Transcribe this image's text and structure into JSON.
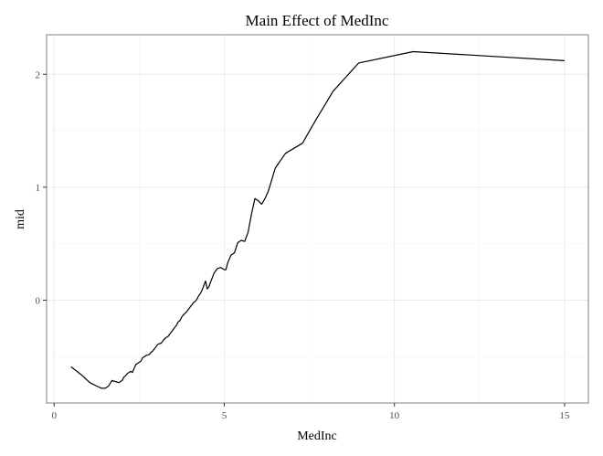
{
  "chart_data": {
    "type": "line",
    "title": "Main Effect of MedInc",
    "xlabel": "MedInc",
    "ylabel": "mid",
    "xlim": [
      -0.22,
      15.7
    ],
    "ylim": [
      -0.91,
      2.35
    ],
    "xticks": [
      0,
      5,
      10,
      15
    ],
    "yticks": [
      0,
      1,
      2
    ],
    "grid": true,
    "series": [
      {
        "x": [
          0.5,
          0.8,
          1.05,
          1.25,
          1.4,
          1.5,
          1.6,
          1.7,
          1.8,
          1.9,
          2.0,
          2.05,
          2.1,
          2.15,
          2.2,
          2.25,
          2.3,
          2.4,
          2.5,
          2.55,
          2.6,
          2.7,
          2.8,
          2.85,
          2.9,
          3.0,
          3.05,
          3.15,
          3.25,
          3.3,
          3.35,
          3.4,
          3.5,
          3.55,
          3.6,
          3.65,
          3.7,
          3.75,
          3.8,
          3.9,
          4.0,
          4.05,
          4.1,
          4.15,
          4.2,
          4.25,
          4.3,
          4.35,
          4.4,
          4.45,
          4.5,
          4.55,
          4.6,
          4.7,
          4.8,
          4.9,
          5.0,
          5.05,
          5.1,
          5.2,
          5.3,
          5.4,
          5.5,
          5.6,
          5.7,
          5.8,
          5.9,
          6.0,
          6.1,
          6.2,
          6.3,
          6.5,
          6.8,
          7.3,
          7.7,
          8.2,
          8.95,
          10.55,
          15.0
        ],
        "y": [
          -0.59,
          -0.66,
          -0.73,
          -0.76,
          -0.78,
          -0.78,
          -0.76,
          -0.71,
          -0.72,
          -0.73,
          -0.71,
          -0.68,
          -0.67,
          -0.65,
          -0.64,
          -0.63,
          -0.64,
          -0.57,
          -0.55,
          -0.54,
          -0.51,
          -0.49,
          -0.48,
          -0.46,
          -0.45,
          -0.41,
          -0.39,
          -0.38,
          -0.34,
          -0.33,
          -0.32,
          -0.3,
          -0.26,
          -0.24,
          -0.22,
          -0.19,
          -0.18,
          -0.15,
          -0.13,
          -0.1,
          -0.06,
          -0.04,
          -0.02,
          -0.01,
          0.01,
          0.04,
          0.06,
          0.09,
          0.13,
          0.17,
          0.1,
          0.12,
          0.16,
          0.24,
          0.28,
          0.29,
          0.27,
          0.27,
          0.33,
          0.4,
          0.42,
          0.51,
          0.53,
          0.52,
          0.6,
          0.76,
          0.9,
          0.88,
          0.85,
          0.9,
          0.97,
          1.17,
          1.3,
          1.39,
          1.6,
          1.85,
          2.1,
          2.2,
          2.12
        ]
      }
    ]
  }
}
